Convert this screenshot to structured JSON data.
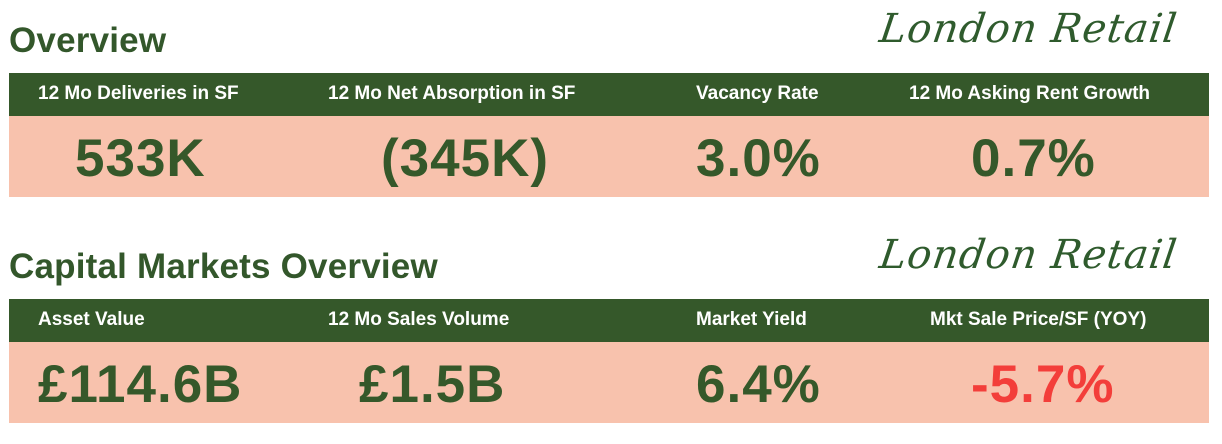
{
  "colors": {
    "brand_green": "#35582a",
    "value_background": "#f8c2ad",
    "header_text": "#ffffff",
    "negative_value": "#f33e3a"
  },
  "overview": {
    "title": "Overview",
    "brand": "London Retail",
    "metrics": [
      {
        "label": "12 Mo Deliveries in SF",
        "value": "533K"
      },
      {
        "label": "12 Mo Net Absorption in SF",
        "value": "(345K)"
      },
      {
        "label": "Vacancy Rate",
        "value": "3.0%"
      },
      {
        "label": "12 Mo Asking Rent Growth",
        "value": "0.7%"
      }
    ]
  },
  "capital_markets": {
    "title": "Capital Markets Overview",
    "brand": "London Retail",
    "metrics": [
      {
        "label": "Asset Value",
        "value": "£114.6B"
      },
      {
        "label": "12 Mo Sales Volume",
        "value": "£1.5B"
      },
      {
        "label": "Market Yield",
        "value": "6.4%"
      },
      {
        "label": "Mkt Sale Price/SF (YOY)",
        "value": "-5.7%",
        "status": "negative"
      }
    ]
  }
}
